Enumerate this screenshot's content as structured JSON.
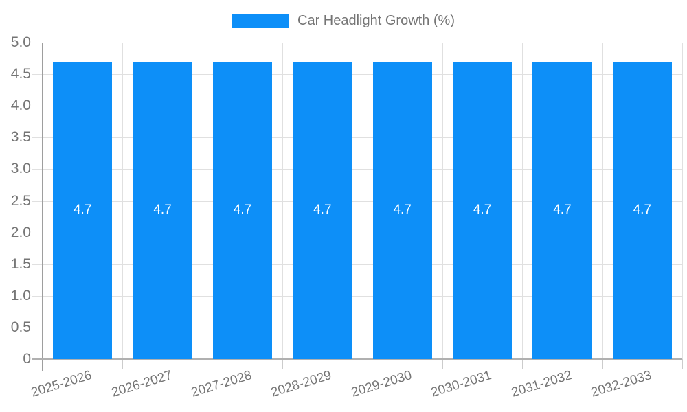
{
  "chart_data": {
    "type": "bar",
    "title": "Car Headlight Growth (%)",
    "categories": [
      "2025-2026",
      "2026-2027",
      "2027-2028",
      "2028-2029",
      "2029-2030",
      "2030-2031",
      "2031-2032",
      "2032-2033"
    ],
    "series": [
      {
        "name": "Car Headlight Growth (%)",
        "values": [
          4.7,
          4.7,
          4.7,
          4.7,
          4.7,
          4.7,
          4.7,
          4.7
        ],
        "value_labels": [
          "4.7",
          "4.7",
          "4.7",
          "4.7",
          "4.7",
          "4.7",
          "4.7",
          "4.7"
        ]
      }
    ],
    "xlabel": "",
    "ylabel": "",
    "ylim": [
      0,
      5
    ],
    "yticks": [
      0,
      0.5,
      1.0,
      1.5,
      2.0,
      2.5,
      3.0,
      3.5,
      4.0,
      4.5,
      5.0
    ],
    "ytick_labels": [
      "0",
      "0.5",
      "1.0",
      "1.5",
      "2.0",
      "2.5",
      "3.0",
      "3.5",
      "4.0",
      "4.5",
      "5.0"
    ],
    "grid": true,
    "legend_position": "top-center",
    "colors": {
      "bar": "#0d8ff8",
      "gridline": "#e0e0e0",
      "axis_line": "#9e9e9e",
      "x_axis_line": "#b0b0b0",
      "tick": "#cccccc",
      "axis_text": "#757575",
      "value_text": "#ffffff",
      "legend_text": "#757575",
      "background": "#ffffff"
    }
  },
  "legend": {
    "label": "Car Headlight Growth (%)"
  }
}
